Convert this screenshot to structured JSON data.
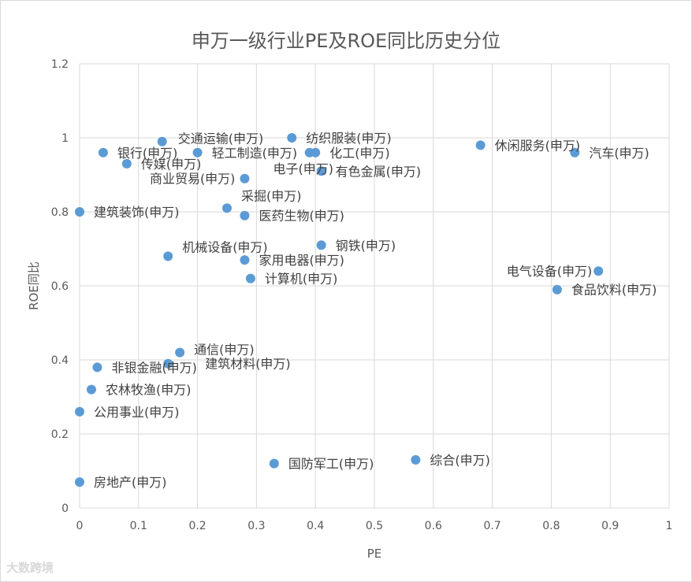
{
  "chart_data": {
    "type": "scatter",
    "title": "申万一级行业PE及ROE同比历史分位",
    "xlabel": "PE",
    "ylabel": "ROE同比",
    "xlim": [
      0,
      1
    ],
    "ylim": [
      0,
      1.2
    ],
    "xticks": [
      0,
      0.1,
      0.2,
      0.3,
      0.4,
      0.5,
      0.6,
      0.7,
      0.8,
      0.9,
      1
    ],
    "yticks": [
      0,
      0.2,
      0.4,
      0.6,
      0.8,
      1,
      1.2
    ],
    "xtick_labels": [
      "0",
      "0.1",
      "0.2",
      "0.3",
      "0.4",
      "0.5",
      "0.6",
      "0.7",
      "0.8",
      "0.9",
      "1"
    ],
    "ytick_labels": [
      "0",
      "0.2",
      "0.4",
      "0.6",
      "0.8",
      "1",
      "1.2"
    ],
    "grid": true,
    "point_color": "#5B9BD5",
    "points": [
      {
        "label": "银行(申万)",
        "x": 0.04,
        "y": 0.96
      },
      {
        "label": "交通运输(申万)",
        "x": 0.14,
        "y": 0.99
      },
      {
        "label": "传媒(申万)",
        "x": 0.08,
        "y": 0.93
      },
      {
        "label": "轻工制造(申万)",
        "x": 0.2,
        "y": 0.96
      },
      {
        "label": "纺织服装(申万)",
        "x": 0.36,
        "y": 1.0
      },
      {
        "label": "电子(申万)",
        "x": 0.39,
        "y": 0.96
      },
      {
        "label": "化工(申万)",
        "x": 0.4,
        "y": 0.96
      },
      {
        "label": "有色金属(申万)",
        "x": 0.41,
        "y": 0.91
      },
      {
        "label": "商业贸易(申万)",
        "x": 0.28,
        "y": 0.89
      },
      {
        "label": "休闲服务(申万)",
        "x": 0.68,
        "y": 0.98
      },
      {
        "label": "汽车(申万)",
        "x": 0.84,
        "y": 0.96
      },
      {
        "label": "建筑装饰(申万)",
        "x": 0.0,
        "y": 0.8
      },
      {
        "label": "采掘(申万)",
        "x": 0.25,
        "y": 0.81
      },
      {
        "label": "医药生物(申万)",
        "x": 0.28,
        "y": 0.79
      },
      {
        "label": "钢铁(申万)",
        "x": 0.41,
        "y": 0.71
      },
      {
        "label": "机械设备(申万)",
        "x": 0.15,
        "y": 0.68
      },
      {
        "label": "家用电器(申万)",
        "x": 0.28,
        "y": 0.67
      },
      {
        "label": "计算机(申万)",
        "x": 0.29,
        "y": 0.62
      },
      {
        "label": "电气设备(申万)",
        "x": 0.88,
        "y": 0.64
      },
      {
        "label": "食品饮料(申万)",
        "x": 0.81,
        "y": 0.59
      },
      {
        "label": "通信(申万)",
        "x": 0.17,
        "y": 0.42
      },
      {
        "label": "建筑材料(申万)",
        "x": 0.15,
        "y": 0.39
      },
      {
        "label": "非银金融(申万)",
        "x": 0.03,
        "y": 0.38
      },
      {
        "label": "农林牧渔(申万)",
        "x": 0.02,
        "y": 0.32
      },
      {
        "label": "公用事业(申万)",
        "x": 0.0,
        "y": 0.26
      },
      {
        "label": "国防军工(申万)",
        "x": 0.33,
        "y": 0.12
      },
      {
        "label": "综合(申万)",
        "x": 0.57,
        "y": 0.13
      },
      {
        "label": "房地产(申万)",
        "x": 0.0,
        "y": 0.07
      }
    ]
  },
  "watermark": "大数跨境"
}
